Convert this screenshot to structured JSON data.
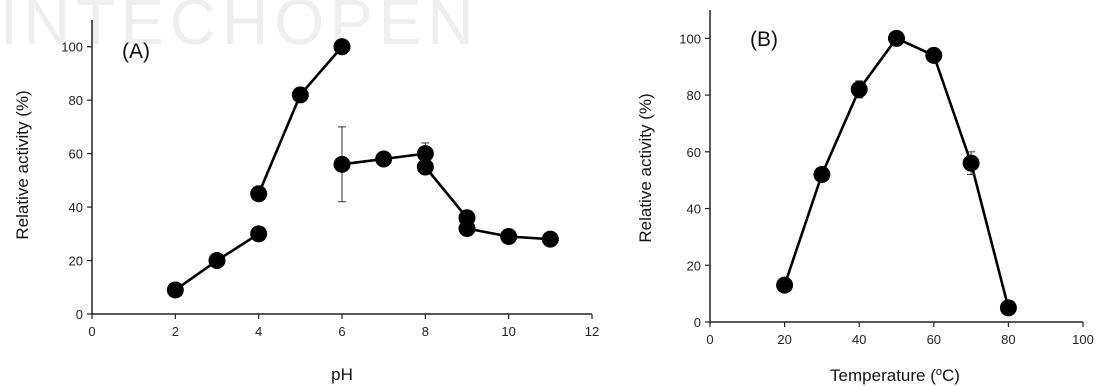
{
  "watermark": "INTECHOPEN",
  "chart_data": [
    {
      "type": "scatter",
      "panel_label": "(A)",
      "title": "",
      "xlabel": "pH",
      "ylabel": "Relative activity (%)",
      "xlim": [
        0,
        12
      ],
      "ylim": [
        0,
        110
      ],
      "xticks": [
        0,
        2,
        4,
        6,
        8,
        10,
        12
      ],
      "yticks": [
        0,
        20,
        40,
        60,
        80,
        100
      ],
      "legend": "none",
      "grid": false,
      "series": [
        {
          "points": [
            [
              2,
              9
            ],
            [
              3,
              20
            ],
            [
              4,
              30
            ]
          ],
          "errors": [
            0,
            0,
            0
          ]
        },
        {
          "points": [
            [
              4,
              45
            ],
            [
              5,
              82
            ],
            [
              6,
              100
            ]
          ],
          "errors": [
            0,
            0,
            0
          ]
        },
        {
          "points": [
            [
              6,
              56
            ],
            [
              7,
              58
            ],
            [
              8,
              60
            ]
          ],
          "errors": [
            14,
            0,
            4
          ]
        },
        {
          "points": [
            [
              8,
              55
            ],
            [
              9,
              36
            ]
          ],
          "errors": [
            0,
            0
          ]
        },
        {
          "points": [
            [
              9,
              32
            ],
            [
              10,
              29
            ],
            [
              11,
              28
            ]
          ],
          "errors": [
            0,
            0,
            0
          ]
        }
      ]
    },
    {
      "type": "line",
      "panel_label": "(B)",
      "title": "",
      "xlabel": "Temperature (",
      "xlabel_sup": "o",
      "xlabel_suffix": "C)",
      "ylabel": "Relative activity (%)",
      "xlim": [
        0,
        100
      ],
      "ylim": [
        0,
        110
      ],
      "xticks": [
        0,
        20,
        40,
        60,
        80,
        100
      ],
      "yticks": [
        0,
        20,
        40,
        60,
        80,
        100
      ],
      "legend": "none",
      "grid": false,
      "series": [
        {
          "points": [
            [
              20,
              13
            ],
            [
              30,
              52
            ],
            [
              40,
              82
            ],
            [
              50,
              100
            ],
            [
              60,
              94
            ],
            [
              70,
              56
            ],
            [
              80,
              5
            ]
          ],
          "errors": [
            0,
            0,
            3,
            0,
            0,
            4,
            0
          ]
        }
      ]
    }
  ]
}
